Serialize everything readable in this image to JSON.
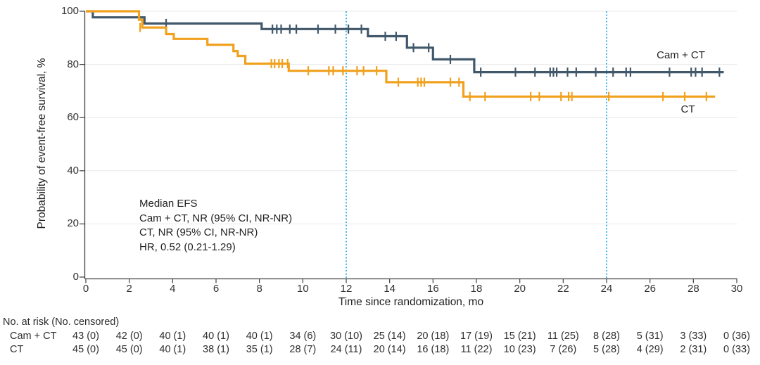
{
  "chart_data": {
    "type": "line",
    "variant": "kaplan_meier_step",
    "title": "",
    "xlabel": "Time since randomization, mo",
    "ylabel": "Probability of event-free survival, %",
    "xlim": [
      0,
      30
    ],
    "ylim": [
      0,
      100
    ],
    "xticks": [
      0,
      2,
      4,
      6,
      8,
      10,
      12,
      14,
      16,
      18,
      20,
      22,
      24,
      26,
      28,
      30
    ],
    "yticks": [
      0,
      20,
      40,
      60,
      80,
      100
    ],
    "grid_y": [
      20,
      40,
      60,
      80,
      100
    ],
    "grid_color": "#e9e9e9",
    "axis_color": "#404040",
    "reference_lines": {
      "x_values": [
        12,
        24
      ],
      "color": "#41b6e9",
      "style": "dotted"
    },
    "series": [
      {
        "name": "Cam + CT",
        "color": "#41586a",
        "steps": [
          [
            0,
            100
          ],
          [
            0.32,
            97.7
          ],
          [
            2.7,
            95.4
          ],
          [
            8.1,
            93.3
          ],
          [
            13.0,
            90.6
          ],
          [
            14.8,
            86.3
          ],
          [
            16.0,
            81.9
          ],
          [
            17.9,
            77.1
          ]
        ],
        "end_x": 29.4,
        "censors": [
          [
            3.7,
            95.4
          ],
          [
            8.6,
            93.3
          ],
          [
            8.8,
            93.3
          ],
          [
            9.0,
            93.3
          ],
          [
            9.4,
            93.3
          ],
          [
            9.7,
            93.3
          ],
          [
            10.7,
            93.3
          ],
          [
            11.5,
            93.3
          ],
          [
            12.1,
            93.3
          ],
          [
            12.7,
            93.3
          ],
          [
            13.8,
            90.6
          ],
          [
            14.3,
            90.6
          ],
          [
            15.1,
            86.3
          ],
          [
            15.8,
            86.3
          ],
          [
            16.8,
            81.9
          ],
          [
            18.2,
            77.1
          ],
          [
            19.8,
            77.1
          ],
          [
            20.7,
            77.1
          ],
          [
            21.4,
            77.1
          ],
          [
            21.55,
            77.1
          ],
          [
            21.7,
            77.1
          ],
          [
            22.2,
            77.1
          ],
          [
            22.6,
            77.1
          ],
          [
            23.5,
            77.1
          ],
          [
            24.3,
            77.1
          ],
          [
            24.9,
            77.1
          ],
          [
            25.1,
            77.1
          ],
          [
            26.9,
            77.1
          ],
          [
            27.9,
            77.1
          ],
          [
            28.1,
            77.1
          ],
          [
            28.4,
            77.1
          ],
          [
            29.2,
            77.1
          ]
        ]
      },
      {
        "name": "CT",
        "color": "#f0a11e",
        "steps": [
          [
            0,
            100
          ],
          [
            2.45,
            96.8
          ],
          [
            2.6,
            93.9
          ],
          [
            3.7,
            91.4
          ],
          [
            4.05,
            89.6
          ],
          [
            5.6,
            87.4
          ],
          [
            6.8,
            85.0
          ],
          [
            7.0,
            83.2
          ],
          [
            7.35,
            80.3
          ],
          [
            9.35,
            77.6
          ],
          [
            13.85,
            73.3
          ],
          [
            17.4,
            67.9
          ]
        ],
        "end_x": 29.0,
        "censors": [
          [
            2.5,
            93.9
          ],
          [
            8.55,
            80.3
          ],
          [
            8.7,
            80.3
          ],
          [
            8.9,
            80.3
          ],
          [
            9.05,
            80.3
          ],
          [
            9.3,
            80.3
          ],
          [
            10.25,
            77.6
          ],
          [
            11.2,
            77.6
          ],
          [
            11.4,
            77.6
          ],
          [
            11.85,
            77.6
          ],
          [
            12.5,
            77.6
          ],
          [
            12.8,
            77.6
          ],
          [
            13.4,
            77.6
          ],
          [
            14.4,
            73.3
          ],
          [
            15.3,
            73.3
          ],
          [
            15.45,
            73.3
          ],
          [
            15.6,
            73.3
          ],
          [
            16.8,
            73.3
          ],
          [
            17.2,
            73.3
          ],
          [
            17.7,
            67.9
          ],
          [
            18.4,
            67.9
          ],
          [
            20.5,
            67.9
          ],
          [
            20.9,
            67.9
          ],
          [
            21.9,
            67.9
          ],
          [
            22.25,
            67.9
          ],
          [
            22.4,
            67.9
          ],
          [
            24.1,
            67.9
          ],
          [
            26.6,
            67.9
          ],
          [
            27.6,
            67.9
          ],
          [
            28.6,
            67.9
          ]
        ]
      }
    ],
    "annotation": {
      "lines": [
        "Median EFS",
        "Cam + CT, NR (95% CI, NR-NR)",
        "CT, NR (95% CI, NR-NR)",
        "HR, 0.52 (0.21-1.29)"
      ]
    }
  },
  "risk_table": {
    "header": "No. at risk (No. censored)",
    "rows": [
      {
        "label": "Cam + CT",
        "values": [
          "43 (0)",
          "42 (0)",
          "40 (1)",
          "40 (1)",
          "40 (1)",
          "34 (6)",
          "30 (10)",
          "25 (14)",
          "20 (18)",
          "17 (19)",
          "15 (21)",
          "11 (25)",
          "8 (28)",
          "5 (31)",
          "3 (33)",
          "0 (36)"
        ]
      },
      {
        "label": "CT",
        "values": [
          "45 (0)",
          "45 (0)",
          "40 (1)",
          "38 (1)",
          "35 (1)",
          "28 (7)",
          "24 (11)",
          "20 (14)",
          "16 (18)",
          "11 (22)",
          "10 (23)",
          "7 (26)",
          "5 (28)",
          "4 (29)",
          "2 (31)",
          "0 (33)"
        ]
      }
    ]
  }
}
